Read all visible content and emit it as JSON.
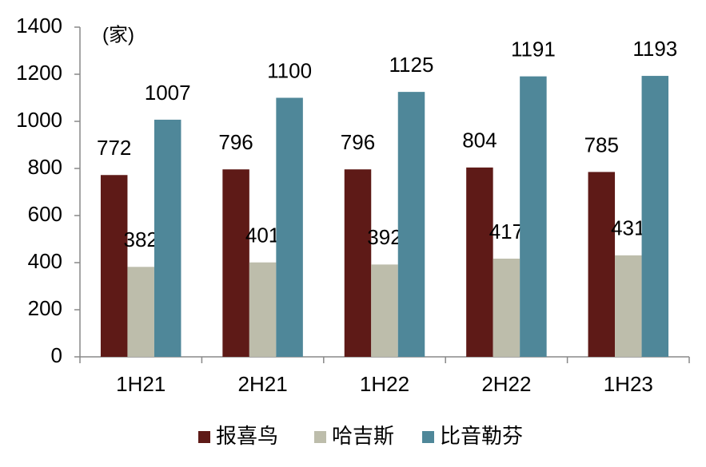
{
  "chart_data": {
    "type": "bar",
    "unit_label": "(家)",
    "categories": [
      "1H21",
      "2H21",
      "1H22",
      "2H22",
      "1H23"
    ],
    "series": [
      {
        "name": "报喜鸟",
        "color": "#5e1a17",
        "values": [
          772,
          796,
          796,
          804,
          785
        ]
      },
      {
        "name": "哈吉斯",
        "color": "#bdbdab",
        "values": [
          382,
          401,
          392,
          417,
          431
        ]
      },
      {
        "name": "比音勒芬",
        "color": "#4f8799",
        "values": [
          1007,
          1100,
          1125,
          1191,
          1193
        ]
      }
    ],
    "ylim": [
      0,
      1400
    ],
    "yticks": [
      0,
      200,
      400,
      600,
      800,
      1000,
      1200,
      1400
    ],
    "grid": false,
    "legend": "bottom"
  }
}
